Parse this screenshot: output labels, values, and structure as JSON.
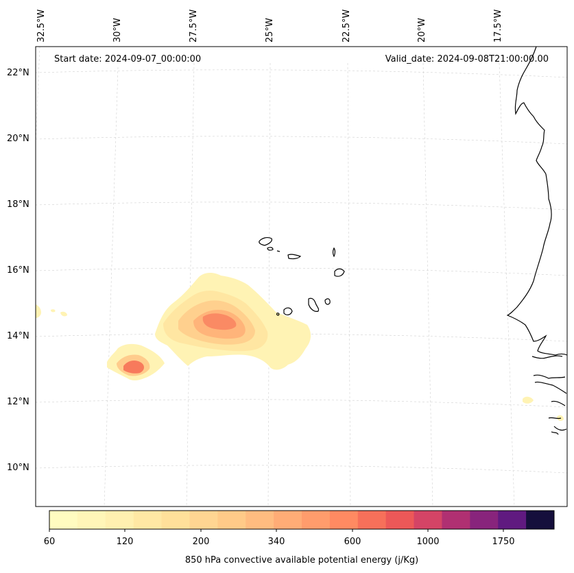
{
  "header": {
    "start_date": "Start date: 2024-09-07_00:00:00",
    "valid_date": "Valid_date: 2024-09-08T21:00:00.00"
  },
  "longitude_labels": [
    "32.5°W",
    "30°W",
    "27.5°W",
    "25°W",
    "22.5°W",
    "20°W",
    "17.5°W"
  ],
  "latitude_labels": [
    "22°N",
    "20°N",
    "18°N",
    "16°N",
    "14°N",
    "12°N",
    "10°N"
  ],
  "colorbar": {
    "title": "850 hPa convective available potential energy (j/Kg)",
    "tick_labels": [
      "60",
      "120",
      "200",
      "340",
      "600",
      "1000",
      "1750"
    ],
    "colors": [
      "#fffcc0",
      "#fff6b8",
      "#fff0b0",
      "#ffe8a4",
      "#ffe09a",
      "#ffd592",
      "#ffca88",
      "#ffbc80",
      "#ffac76",
      "#ff9c6c",
      "#ff8a62",
      "#f7705a",
      "#ec5858",
      "#d44466",
      "#b03072",
      "#88247c",
      "#601a80",
      "#150f3c"
    ]
  },
  "colors": {
    "coast": "#000000",
    "grid": "#cccccc"
  }
}
